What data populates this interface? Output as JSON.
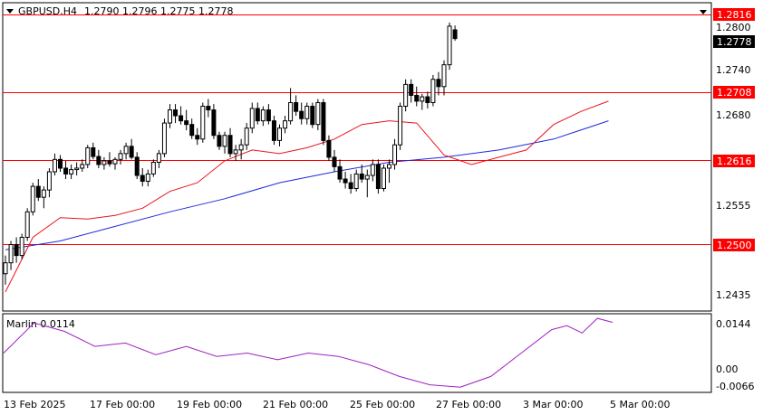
{
  "header": {
    "symbol": "GBPUSD,H4",
    "ohlc": "1.2790 1.2796 1.2775 1.2778"
  },
  "price_axis": {
    "ticks": [
      "1.2800",
      "1.2740",
      "1.2680",
      "1.2555",
      "1.2435"
    ]
  },
  "levels": [
    {
      "label": "1.2816",
      "value": 1.2816
    },
    {
      "label": "1.2708",
      "value": 1.2708
    },
    {
      "label": "1.2616",
      "value": 1.2616
    },
    {
      "label": "1.2500",
      "value": 1.25
    }
  ],
  "current_price": {
    "label": "1.2778",
    "value": 1.2778
  },
  "indicator": {
    "name": "Marlin 0.0114",
    "ticks": [
      "0.0144",
      "0.00",
      "-0.0066"
    ]
  },
  "time_axis": {
    "labels": [
      "13 Feb 2025",
      "17 Feb 00:00",
      "19 Feb 00:00",
      "21 Feb 00:00",
      "25 Feb 00:00",
      "27 Feb 00:00",
      "3 Mar 00:00",
      "5 Mar 00:00"
    ]
  },
  "colors": {
    "level_line": "#ff0000",
    "level_label_bg": "#ff0000",
    "current_label_bg": "#000000",
    "ma_fast": "#e8141d",
    "ma_slow": "#1e2ad8",
    "oscillator": "#a020c0",
    "candle_bull": "#ffffff",
    "candle_bear": "#000000"
  },
  "chart_data": {
    "type": "candlestick",
    "ylim": [
      1.2405,
      1.2826
    ],
    "candles": [
      [
        1.2455,
        1.248,
        1.244,
        1.247
      ],
      [
        1.247,
        1.25,
        1.246,
        1.2495
      ],
      [
        1.2495,
        1.2505,
        1.247,
        1.248
      ],
      [
        1.248,
        1.251,
        1.2475,
        1.2505
      ],
      [
        1.2505,
        1.2545,
        1.25,
        1.254
      ],
      [
        1.254,
        1.258,
        1.2535,
        1.2575
      ],
      [
        1.2575,
        1.2585,
        1.2555,
        1.256
      ],
      [
        1.256,
        1.2575,
        1.2545,
        1.257
      ],
      [
        1.257,
        1.26,
        1.256,
        1.2595
      ],
      [
        1.2595,
        1.262,
        1.259,
        1.2612
      ],
      [
        1.2612,
        1.2618,
        1.2595,
        1.26
      ],
      [
        1.26,
        1.261,
        1.2585,
        1.2592
      ],
      [
        1.2592,
        1.2605,
        1.2585,
        1.2598
      ],
      [
        1.2598,
        1.2608,
        1.259,
        1.26
      ],
      [
        1.26,
        1.2612,
        1.2595,
        1.2605
      ],
      [
        1.2605,
        1.2632,
        1.26,
        1.2628
      ],
      [
        1.2628,
        1.2635,
        1.2612,
        1.2616
      ],
      [
        1.2616,
        1.2625,
        1.26,
        1.2605
      ],
      [
        1.2605,
        1.2615,
        1.2598,
        1.261
      ],
      [
        1.261,
        1.2622,
        1.2602,
        1.2606
      ],
      [
        1.2606,
        1.2615,
        1.2598,
        1.2612
      ],
      [
        1.2612,
        1.2625,
        1.2605,
        1.262
      ],
      [
        1.262,
        1.2635,
        1.2612,
        1.263
      ],
      [
        1.263,
        1.264,
        1.2612,
        1.2615
      ],
      [
        1.2615,
        1.2622,
        1.2585,
        1.259
      ],
      [
        1.259,
        1.26,
        1.2575,
        1.2582
      ],
      [
        1.2582,
        1.2598,
        1.2575,
        1.2592
      ],
      [
        1.2592,
        1.2612,
        1.2588,
        1.2608
      ],
      [
        1.2608,
        1.2625,
        1.26,
        1.262
      ],
      [
        1.262,
        1.2668,
        1.2615,
        1.2662
      ],
      [
        1.2662,
        1.2688,
        1.2655,
        1.268
      ],
      [
        1.268,
        1.2688,
        1.2662,
        1.2672
      ],
      [
        1.2672,
        1.2685,
        1.266,
        1.2665
      ],
      [
        1.2665,
        1.268,
        1.2652,
        1.266
      ],
      [
        1.266,
        1.2668,
        1.264,
        1.2645
      ],
      [
        1.2645,
        1.2655,
        1.2632,
        1.264
      ],
      [
        1.264,
        1.269,
        1.2635,
        1.2685
      ],
      [
        1.2685,
        1.2695,
        1.267,
        1.268
      ],
      [
        1.268,
        1.2688,
        1.264,
        1.2645
      ],
      [
        1.2645,
        1.265,
        1.2625,
        1.263
      ],
      [
        1.263,
        1.265,
        1.262,
        1.2645
      ],
      [
        1.2645,
        1.2655,
        1.2615,
        1.262
      ],
      [
        1.262,
        1.2632,
        1.261,
        1.2625
      ],
      [
        1.2625,
        1.264,
        1.2612,
        1.2632
      ],
      [
        1.2632,
        1.2662,
        1.2625,
        1.2655
      ],
      [
        1.2655,
        1.269,
        1.2648,
        1.2682
      ],
      [
        1.2682,
        1.269,
        1.266,
        1.2665
      ],
      [
        1.2665,
        1.2685,
        1.2658,
        1.268
      ],
      [
        1.268,
        1.2688,
        1.266,
        1.2665
      ],
      [
        1.2665,
        1.2672,
        1.2632,
        1.2638
      ],
      [
        1.2638,
        1.266,
        1.263,
        1.2655
      ],
      [
        1.2655,
        1.2672,
        1.2648,
        1.2665
      ],
      [
        1.2665,
        1.271,
        1.266,
        1.269
      ],
      [
        1.269,
        1.27,
        1.2672,
        1.2678
      ],
      [
        1.2678,
        1.269,
        1.266,
        1.2668
      ],
      [
        1.2668,
        1.269,
        1.266,
        1.2685
      ],
      [
        1.2685,
        1.269,
        1.2655,
        1.266
      ],
      [
        1.266,
        1.2695,
        1.2652,
        1.269
      ],
      [
        1.269,
        1.2695,
        1.2632,
        1.2638
      ],
      [
        1.2638,
        1.2645,
        1.261,
        1.2615
      ],
      [
        1.2615,
        1.2625,
        1.2595,
        1.2602
      ],
      [
        1.2602,
        1.2612,
        1.258,
        1.2585
      ],
      [
        1.2585,
        1.2595,
        1.2572,
        1.258
      ],
      [
        1.258,
        1.2592,
        1.2565,
        1.2572
      ],
      [
        1.2572,
        1.2598,
        1.2568,
        1.2592
      ],
      [
        1.2592,
        1.2605,
        1.258,
        1.2585
      ],
      [
        1.2585,
        1.2598,
        1.256,
        1.259
      ],
      [
        1.259,
        1.2612,
        1.2582,
        1.2605
      ],
      [
        1.2605,
        1.2612,
        1.2565,
        1.2572
      ],
      [
        1.2572,
        1.2605,
        1.2568,
        1.26
      ],
      [
        1.26,
        1.2612,
        1.258,
        1.2605
      ],
      [
        1.2605,
        1.264,
        1.2598,
        1.2632
      ],
      [
        1.2632,
        1.269,
        1.2625,
        1.2685
      ],
      [
        1.2685,
        1.2722,
        1.2678,
        1.2715
      ],
      [
        1.2715,
        1.2722,
        1.269,
        1.27
      ],
      [
        1.27,
        1.2712,
        1.2685,
        1.2692
      ],
      [
        1.2692,
        1.2702,
        1.268,
        1.2698
      ],
      [
        1.2698,
        1.2705,
        1.2682,
        1.269
      ],
      [
        1.269,
        1.2728,
        1.2685,
        1.2722
      ],
      [
        1.2722,
        1.2732,
        1.27,
        1.2712
      ],
      [
        1.2712,
        1.2748,
        1.27,
        1.2742
      ],
      [
        1.2742,
        1.28,
        1.2735,
        1.2795
      ],
      [
        1.279,
        1.2796,
        1.2775,
        1.2778
      ]
    ],
    "ma_fast": [
      [
        0,
        1.243
      ],
      [
        5,
        1.2505
      ],
      [
        10,
        1.2532
      ],
      [
        15,
        1.253
      ],
      [
        20,
        1.2535
      ],
      [
        25,
        1.2545
      ],
      [
        30,
        1.2568
      ],
      [
        35,
        1.258
      ],
      [
        40,
        1.261
      ],
      [
        45,
        1.2625
      ],
      [
        50,
        1.262
      ],
      [
        55,
        1.2628
      ],
      [
        60,
        1.264
      ],
      [
        65,
        1.266
      ],
      [
        70,
        1.2665
      ],
      [
        75,
        1.2662
      ],
      [
        80,
        1.2618
      ],
      [
        85,
        1.2605
      ],
      [
        90,
        1.2615
      ],
      [
        95,
        1.2625
      ],
      [
        100,
        1.266
      ],
      [
        105,
        1.2678
      ],
      [
        110,
        1.2692
      ]
    ],
    "ma_slow": [
      [
        0,
        1.2488
      ],
      [
        10,
        1.25
      ],
      [
        20,
        1.252
      ],
      [
        30,
        1.254
      ],
      [
        40,
        1.2558
      ],
      [
        50,
        1.258
      ],
      [
        60,
        1.2595
      ],
      [
        70,
        1.2608
      ],
      [
        80,
        1.2615
      ],
      [
        90,
        1.2625
      ],
      [
        100,
        1.264
      ],
      [
        110,
        1.2665
      ]
    ]
  },
  "oscillator_data": [
    [
      0,
      0.004
    ],
    [
      6,
      0.013
    ],
    [
      12,
      0.0105
    ],
    [
      18,
      0.006
    ],
    [
      24,
      0.007
    ],
    [
      30,
      0.0035
    ],
    [
      36,
      0.006
    ],
    [
      42,
      0.003
    ],
    [
      48,
      0.004
    ],
    [
      54,
      0.002
    ],
    [
      60,
      0.004
    ],
    [
      66,
      0.003
    ],
    [
      72,
      0.0005
    ],
    [
      78,
      -0.003
    ],
    [
      84,
      -0.0055
    ],
    [
      90,
      -0.0062
    ],
    [
      96,
      -0.003
    ],
    [
      102,
      0.004
    ],
    [
      108,
      0.011
    ],
    [
      111,
      0.0122
    ],
    [
      114,
      0.01
    ],
    [
      117,
      0.0144
    ],
    [
      120,
      0.0132
    ]
  ]
}
